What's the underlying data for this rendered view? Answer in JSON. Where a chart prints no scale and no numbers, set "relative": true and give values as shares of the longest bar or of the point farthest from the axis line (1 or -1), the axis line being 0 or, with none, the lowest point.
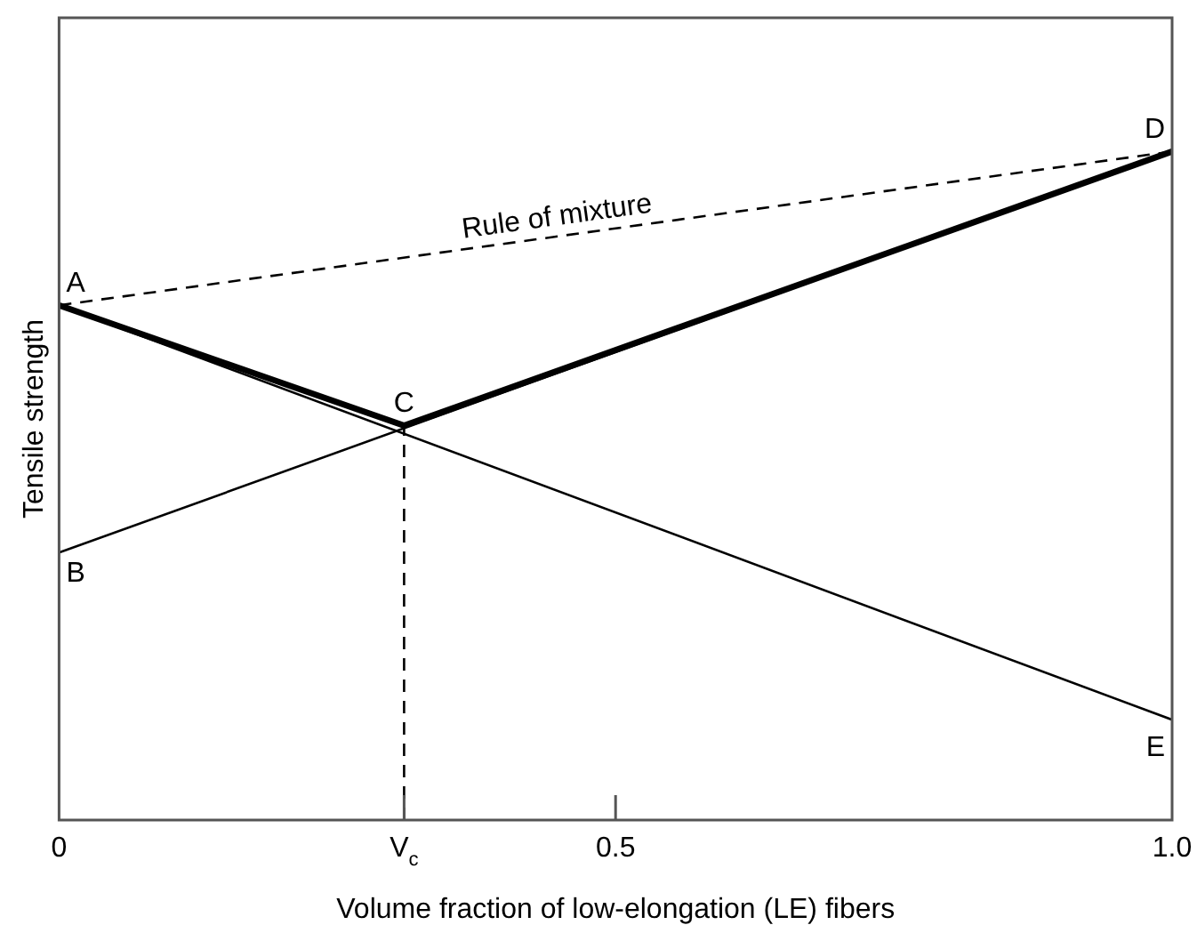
{
  "chart_data": {
    "type": "line",
    "relative": true,
    "xlabel": "Volume fraction of low-elongation (LE) fibers",
    "ylabel": "Tensile strength",
    "xlim": [
      0,
      1
    ],
    "xticks": [
      0,
      {
        "value": 0.31,
        "label": "V$_{c}$"
      },
      0.5,
      {
        "value": 1,
        "label": "1.0"
      }
    ],
    "series": [
      {
        "color": "#000000",
        "x": [
          0,
          1
        ],
        "values": [
          0.77,
          1
        ],
        "line_style": "dashed"
      },
      {
        "color": "#000000",
        "x": [
          0,
          0.31,
          1
        ],
        "values": [
          0.77,
          0.59,
          1
        ]
      },
      {
        "color": "#000000",
        "x": [
          0,
          1
        ],
        "values": [
          0.77,
          0.15
        ]
      },
      {
        "color": "#000000",
        "x": [
          0,
          1
        ],
        "values": [
          0.4,
          1
        ]
      },
      {
        "color": "#000000",
        "x": [
          0.31,
          0.31
        ],
        "values": [
          0,
          0.59
        ],
        "line_style": "dashed"
      }
    ],
    "annotations": [
      {
        "text": "A",
        "x": 0,
        "y": 0.77
      },
      {
        "text": "B",
        "x": 0,
        "y": 0.4
      },
      {
        "text": "C",
        "x": 0.31,
        "y": 0.59
      },
      {
        "text": "D",
        "x": 1,
        "y": 1
      },
      {
        "text": "E",
        "x": 1,
        "y": 0.15
      },
      {
        "text": "Rule of mixture",
        "x": 0.45,
        "y": 0.87
      }
    ],
    "legend": false,
    "grid": false,
    "marker": "none"
  }
}
